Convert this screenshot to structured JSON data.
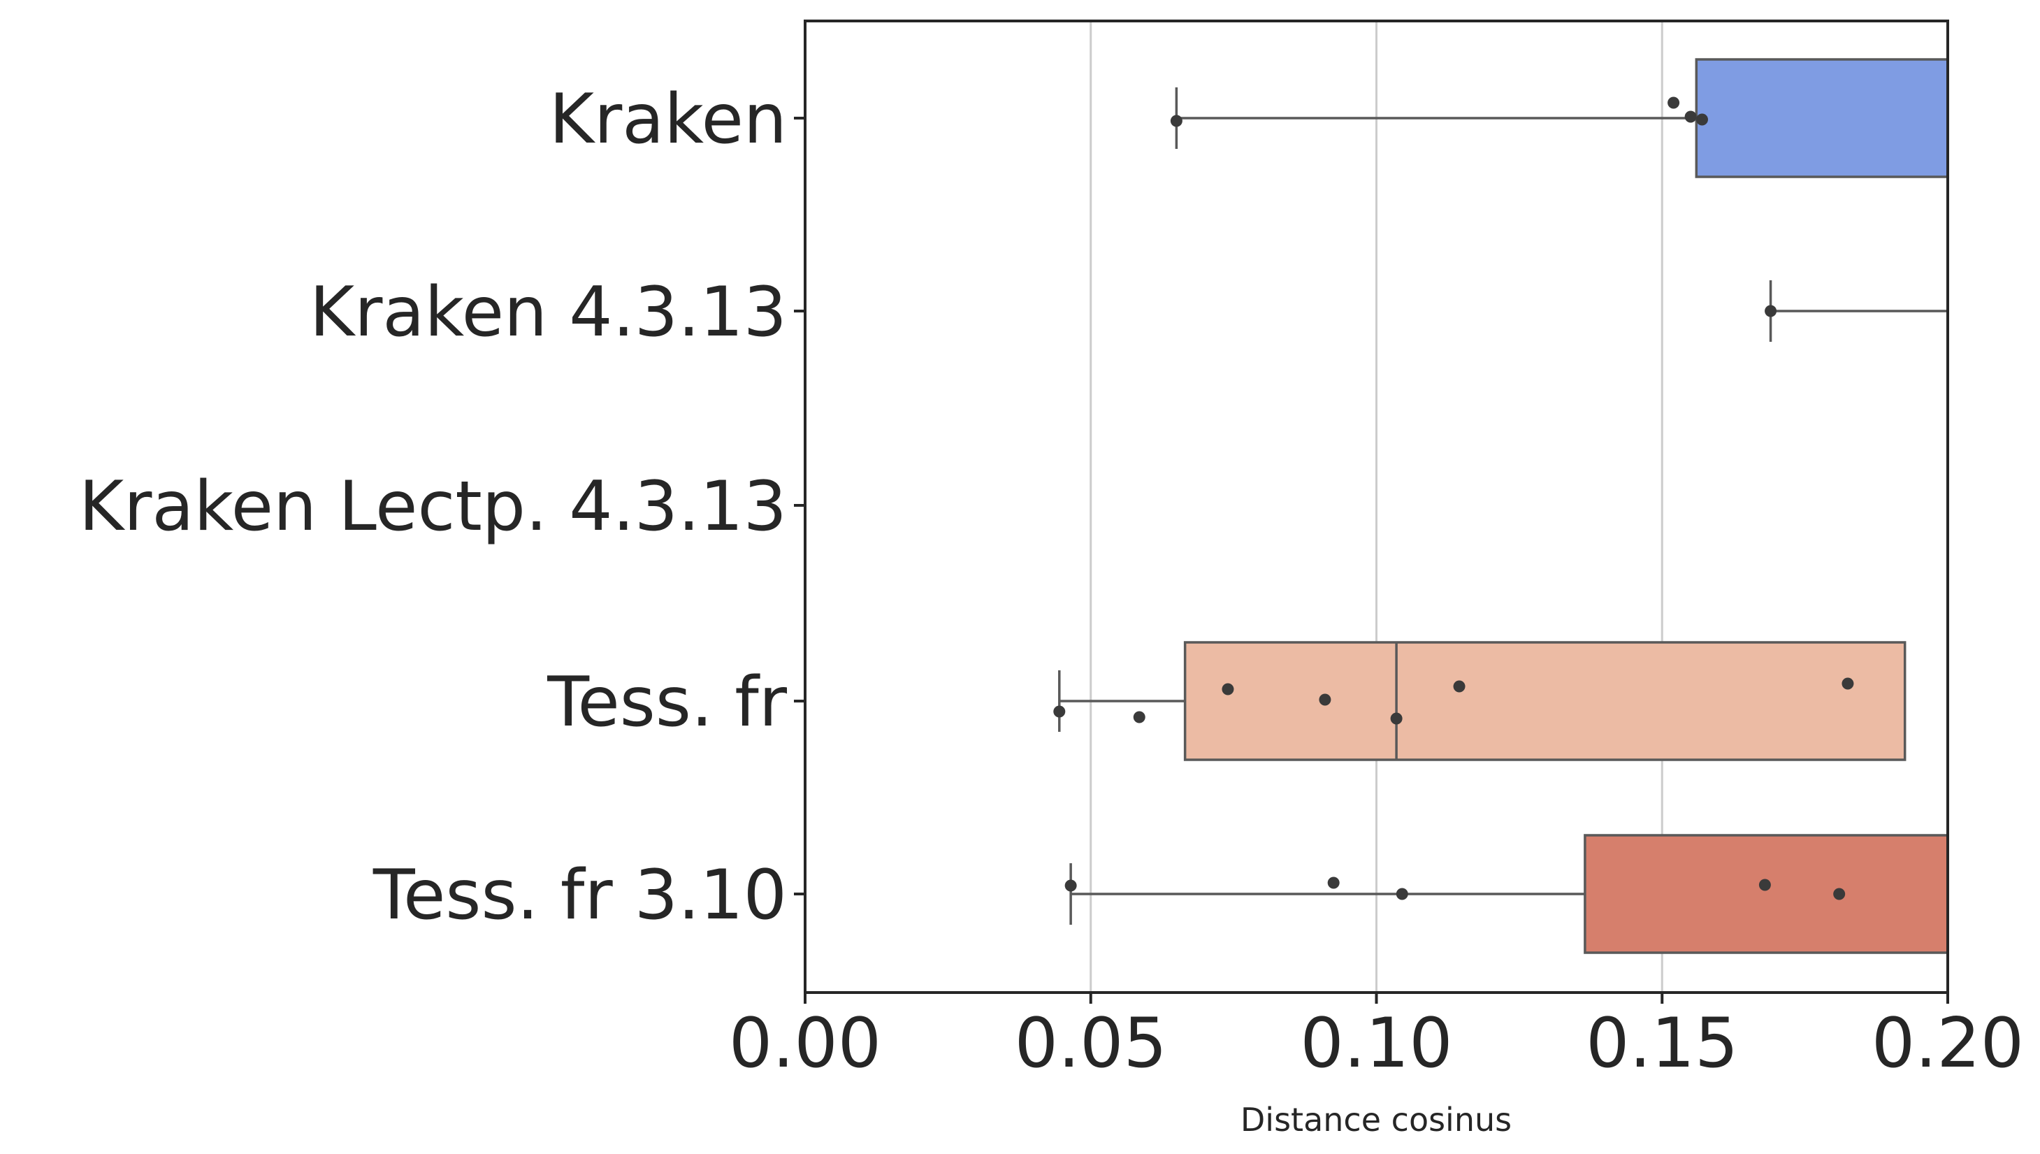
{
  "chart_data": {
    "type": "box",
    "orientation": "horizontal",
    "xlabel": "Distance cosinus",
    "ylabel": "",
    "xlim": [
      0.0,
      0.2
    ],
    "xticks": [
      "0.00",
      "0.05",
      "0.10",
      "0.15",
      "0.20"
    ],
    "grid": "vertical",
    "categories": [
      "Kraken",
      "Kraken 4.3.13",
      "Kraken Lectp. 4.3.13",
      "Tess. fr",
      "Tess. fr 3.10"
    ],
    "colors": [
      "#7f9ce3",
      "#b9cdf5",
      "#ddd9d6",
      "#ecbba4",
      "#d67f6c"
    ],
    "boxes": [
      {
        "q1": 0.156,
        "median": null,
        "q3": null,
        "whisker_low": 0.065,
        "whisker_high": null,
        "points": [
          0.065,
          0.152,
          0.155,
          0.157
        ]
      },
      {
        "q1": null,
        "median": null,
        "q3": null,
        "whisker_low": 0.169,
        "whisker_high": null,
        "points": [
          0.169
        ]
      },
      {
        "q1": null,
        "median": null,
        "q3": null,
        "whisker_low": null,
        "whisker_high": null,
        "points": []
      },
      {
        "q1": 0.0665,
        "median": 0.1035,
        "q3": 0.1925,
        "whisker_low": 0.0445,
        "whisker_high": null,
        "points": [
          0.0445,
          0.0585,
          0.074,
          0.091,
          0.1035,
          0.1145,
          0.1825
        ]
      },
      {
        "q1": 0.1365,
        "median": null,
        "q3": null,
        "whisker_low": 0.0465,
        "whisker_high": null,
        "points": [
          0.0465,
          0.0925,
          0.1045,
          0.168,
          0.181
        ]
      }
    ]
  }
}
